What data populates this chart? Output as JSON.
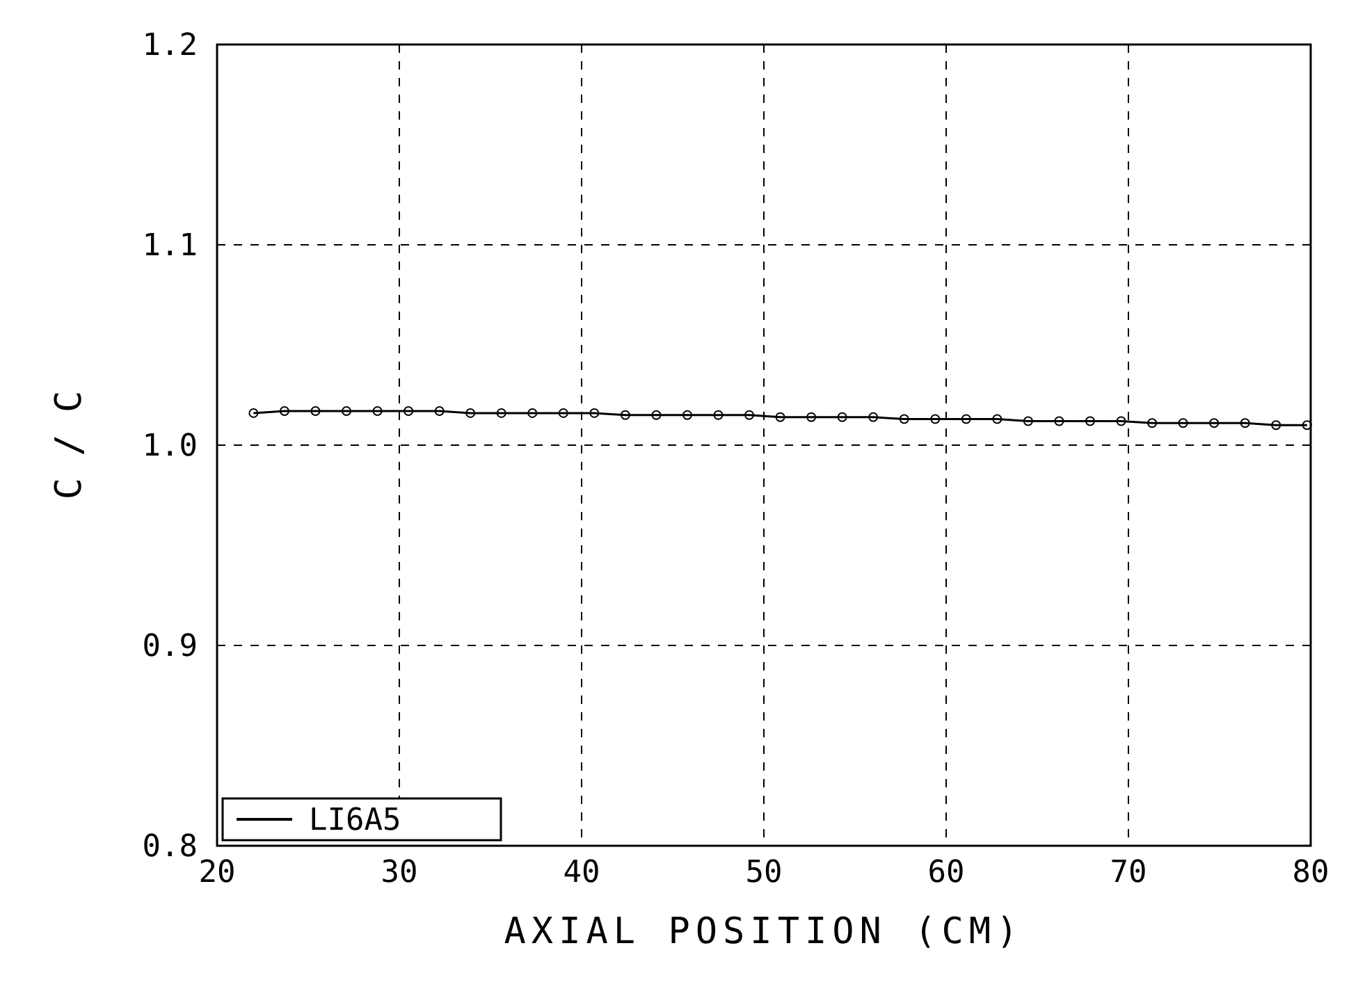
{
  "chart_data": {
    "type": "line",
    "xlabel": "AXIAL POSITION (CM)",
    "ylabel": "C / C",
    "x": [
      22,
      23.7,
      25.4,
      27.1,
      28.8,
      30.5,
      32.2,
      33.9,
      35.6,
      37.3,
      39,
      40.7,
      42.4,
      44.1,
      45.8,
      47.5,
      49.2,
      50.9,
      52.6,
      54.3,
      56,
      57.7,
      59.4,
      61.1,
      62.8,
      64.5,
      66.2,
      67.9,
      69.6,
      71.3,
      73,
      74.7,
      76.4,
      78.1,
      79.8
    ],
    "series": [
      {
        "name": "LI6A5",
        "color": "#000000",
        "values": [
          1.016,
          1.017,
          1.017,
          1.017,
          1.017,
          1.017,
          1.017,
          1.016,
          1.016,
          1.016,
          1.016,
          1.016,
          1.015,
          1.015,
          1.015,
          1.015,
          1.015,
          1.014,
          1.014,
          1.014,
          1.014,
          1.013,
          1.013,
          1.013,
          1.013,
          1.012,
          1.012,
          1.012,
          1.012,
          1.011,
          1.011,
          1.011,
          1.011,
          1.01,
          1.01
        ]
      }
    ],
    "xlim": [
      20,
      80
    ],
    "xticks": [
      20,
      30,
      40,
      50,
      60,
      70,
      80
    ],
    "ylim": [
      0.8,
      1.2
    ],
    "yticks": [
      {
        "value": 0.8,
        "label": "0.8"
      },
      {
        "value": 0.9,
        "label": "0.9"
      },
      {
        "value": 1.0,
        "label": "1.0"
      },
      {
        "value": 1.1,
        "label": "1.1"
      },
      {
        "value": 1.2,
        "label": "1.2"
      }
    ],
    "grid": true,
    "legend": "bottom left",
    "marker": "circle",
    "line_style": "solid"
  }
}
